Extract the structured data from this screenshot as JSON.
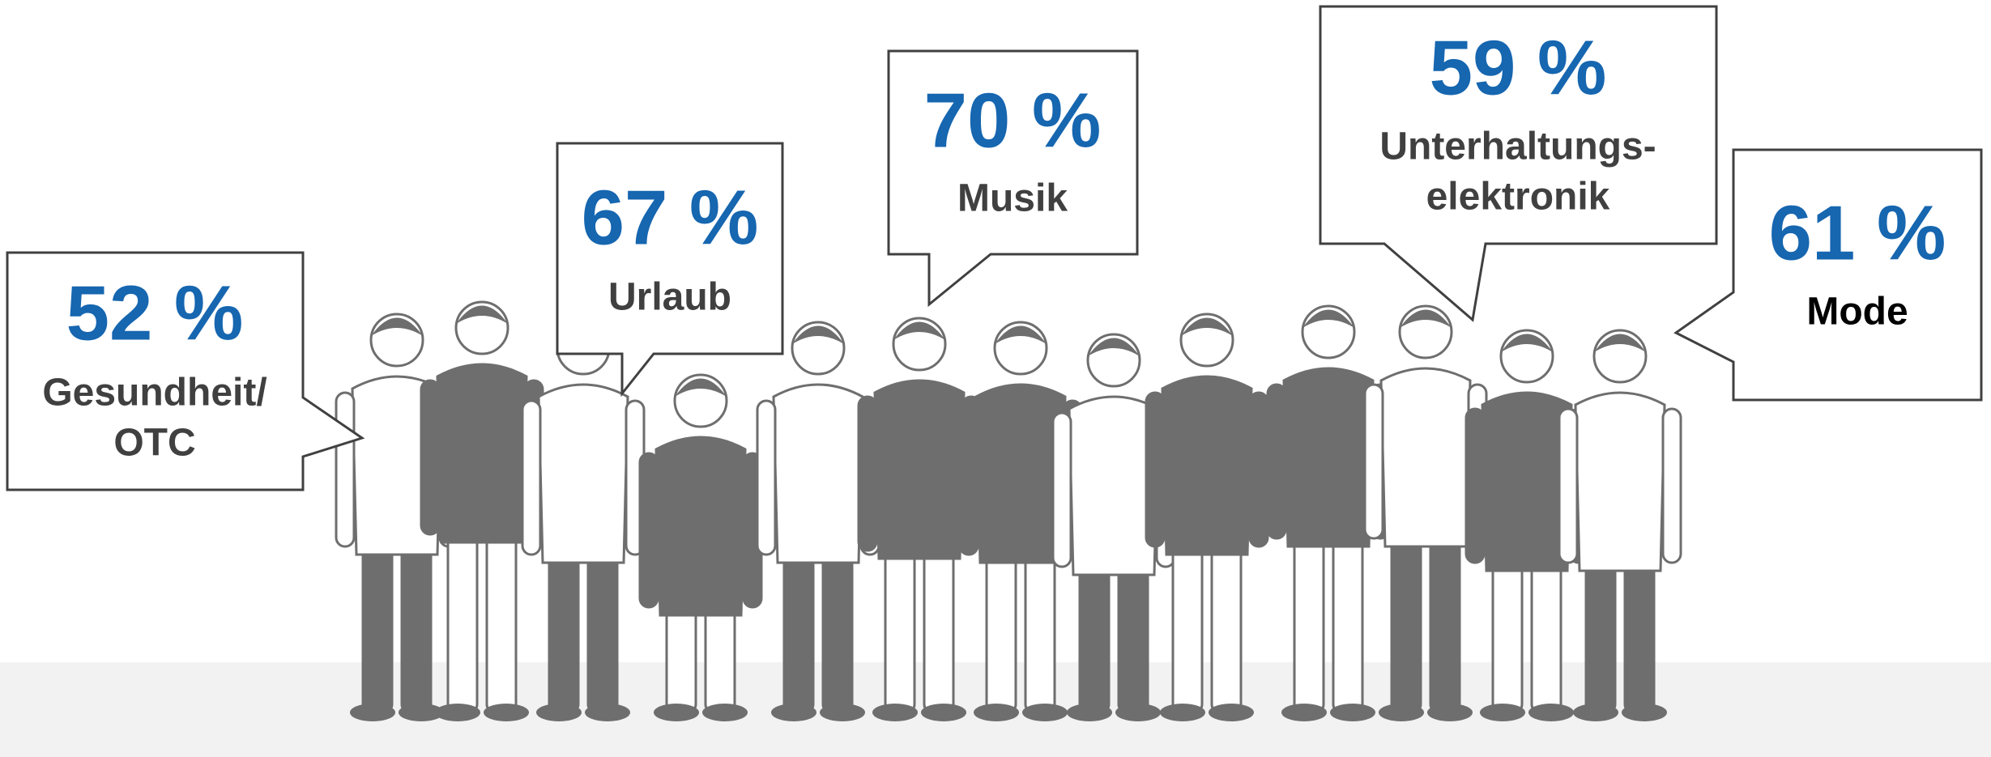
{
  "bubbles": [
    {
      "value": "52 %",
      "label": [
        "Gesundheit/",
        "OTC"
      ]
    },
    {
      "value": "67 %",
      "label": [
        "Urlaub"
      ]
    },
    {
      "value": "70 %",
      "label": [
        "Musik"
      ]
    },
    {
      "value": "59 %",
      "label": [
        "Unterhaltungs-",
        "elektronik"
      ]
    },
    {
      "value": "61 %",
      "label": [
        "Mode"
      ]
    }
  ]
}
